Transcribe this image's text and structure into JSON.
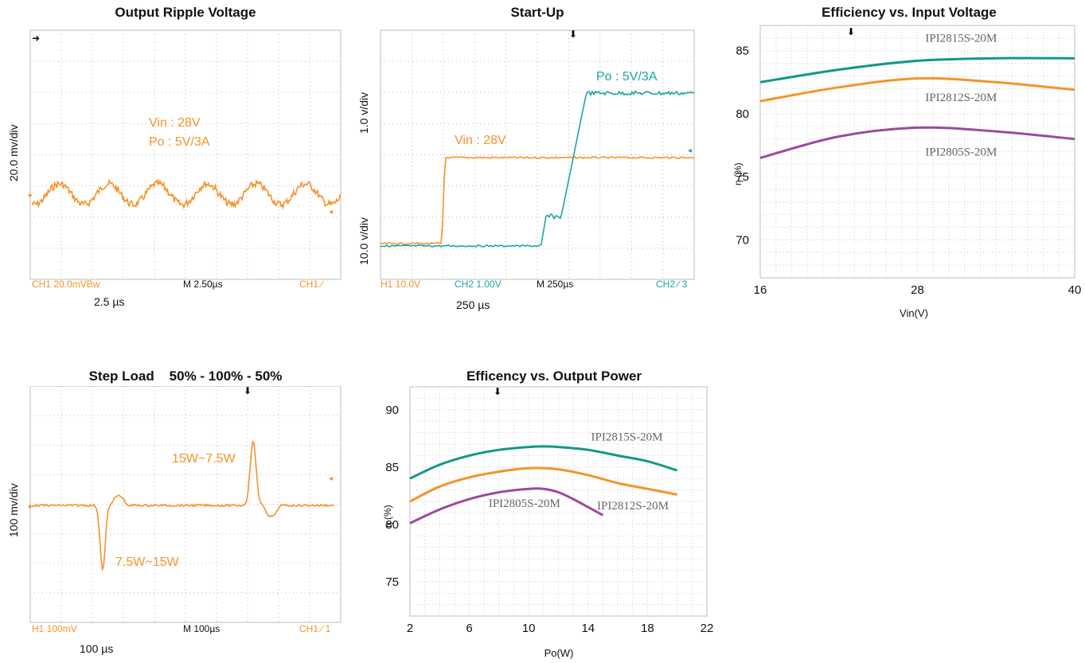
{
  "colors": {
    "orange": "#f5932a",
    "teal": "#1aa6a6",
    "green": "#13978a",
    "purple": "#9b4a9c",
    "grid": "#c8c8c8"
  },
  "panels": {
    "ripple": {
      "title": "Output Ripple Voltage",
      "ylabel": "20.0 mv/div",
      "annotations": [
        "Vin : 28V",
        "Po : 5V/3A"
      ],
      "footer": {
        "ch": "CH1  20.0mVBw",
        "time": "M 2.50µs",
        "trig": "CH1 ∕"
      },
      "timescale": "2.5 µs"
    },
    "startup": {
      "title": "Start-Up",
      "ylabel_top": "1.0 v/div",
      "ylabel_bottom": "10.0 v/div",
      "annotations": [
        "Vin : 28V",
        "Po : 5V/3A"
      ],
      "footer": {
        "ch1": "H1  10.0V",
        "ch2": "CH2  1.00V",
        "time": "M 250µs",
        "trig": "CH2 ∕ 3"
      },
      "timescale": "250 µs"
    },
    "stepload": {
      "title": "Step Load    50% - 100% - 50%",
      "ylabel": "100 mv/div",
      "annotations": [
        "15W~7.5W",
        "7.5W~15W"
      ],
      "footer": {
        "ch": "H1  100mV",
        "time": "M 100µs",
        "trig": "CH1 ∕ 1"
      },
      "timescale": "100 µs"
    }
  },
  "chart_data": [
    {
      "type": "line",
      "title": "Efficiency vs. Input Voltage",
      "xlabel": "Vin(V)",
      "ylabel": "η (%)",
      "xlim": [
        16,
        40
      ],
      "ylim": [
        67,
        87
      ],
      "xticks": [
        16,
        28,
        40
      ],
      "yticks": [
        70,
        75,
        80,
        85
      ],
      "grid": true,
      "series": [
        {
          "name": "IPI2815S-20M",
          "color": "#13978a",
          "x": [
            16,
            22,
            28,
            34,
            40
          ],
          "y": [
            82.5,
            83.5,
            84.2,
            84.4,
            84.4
          ]
        },
        {
          "name": "IPI2812S-20M",
          "color": "#f5932a",
          "x": [
            16,
            22,
            28,
            34,
            40
          ],
          "y": [
            81,
            82.1,
            82.8,
            82.5,
            81.9
          ]
        },
        {
          "name": "IPI2805S-20M",
          "color": "#9b4a9c",
          "x": [
            16,
            22,
            28,
            34,
            40
          ],
          "y": [
            76.5,
            78.2,
            78.9,
            78.6,
            78
          ]
        }
      ]
    },
    {
      "type": "line",
      "title": "Efficency vs. Output Power",
      "xlabel": "Po(W)",
      "ylabel": "η (%)",
      "xlim": [
        2,
        22
      ],
      "ylim": [
        72,
        92
      ],
      "xticks": [
        2,
        6,
        10,
        14,
        18,
        22
      ],
      "yticks": [
        75,
        80,
        85,
        90
      ],
      "grid": true,
      "series": [
        {
          "name": "IPI2815S-20M",
          "color": "#13978a",
          "x": [
            2,
            4,
            6,
            8,
            10,
            11,
            12,
            14,
            16,
            18,
            20
          ],
          "y": [
            84,
            85.2,
            86,
            86.5,
            86.75,
            86.8,
            86.75,
            86.5,
            86,
            85.5,
            84.7
          ]
        },
        {
          "name": "IPI2812S-20M",
          "color": "#f5932a",
          "x": [
            2,
            4,
            6,
            8,
            10,
            12,
            14,
            16,
            18,
            20
          ],
          "y": [
            82,
            83.3,
            84.1,
            84.6,
            84.9,
            84.8,
            84.3,
            83.6,
            83.1,
            82.6
          ]
        },
        {
          "name": "IPI2805S-20M",
          "color": "#9b4a9c",
          "x": [
            2,
            4,
            6,
            8,
            10,
            11,
            12,
            13,
            14,
            15
          ],
          "y": [
            80.1,
            81.3,
            82.2,
            82.8,
            83.1,
            83.1,
            82.8,
            82.2,
            81.5,
            80.8
          ]
        }
      ]
    }
  ]
}
